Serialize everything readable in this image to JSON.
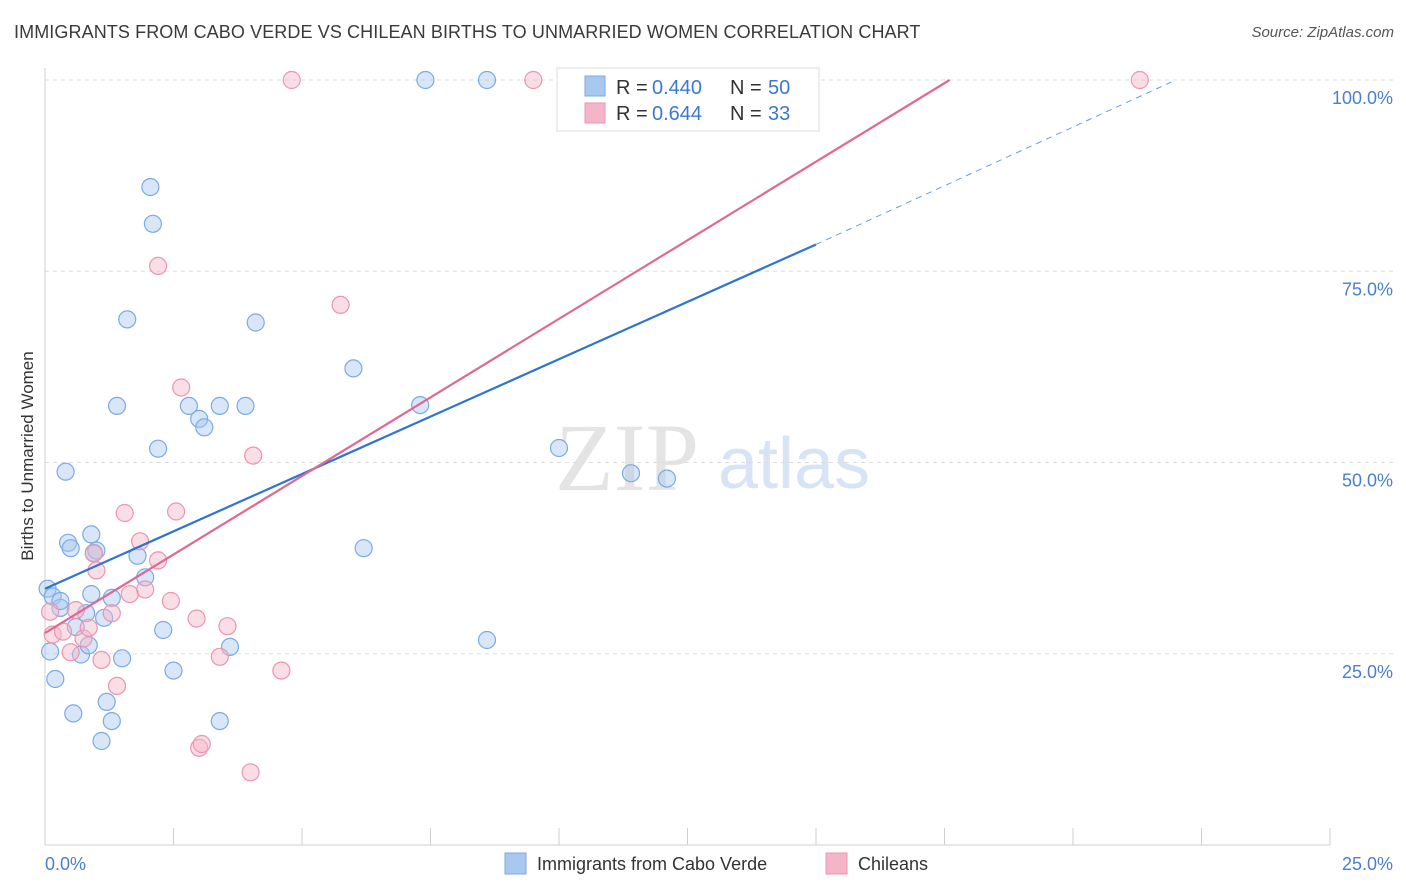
{
  "title": "IMMIGRANTS FROM CABO VERDE VS CHILEAN BIRTHS TO UNMARRIED WOMEN CORRELATION CHART",
  "source": "Source: ZipAtlas.com",
  "watermark": {
    "zip": "ZIP",
    "atlas": "atlas"
  },
  "colors": {
    "blue_fill": "#a8c8f0",
    "blue_stroke": "#7aaae6",
    "blue_line": "#2f74d0",
    "pink_fill": "#f5b5c8",
    "pink_stroke": "#ee93b0",
    "pink_line": "#e06892",
    "axis_label": "#4a7fd0",
    "grid": "#dddddd"
  },
  "legend": {
    "rows": [
      {
        "r_label": "R =",
        "r_value": "0.440",
        "n_label": "N =",
        "n_value": "50"
      },
      {
        "r_label": "R =",
        "r_value": "0.644",
        "n_label": "N =",
        "n_value": "33"
      }
    ]
  },
  "chart_data": {
    "type": "scatter",
    "title": "IMMIGRANTS FROM CABO VERDE VS CHILEAN BIRTHS TO UNMARRIED WOMEN CORRELATION CHART",
    "xlabel": "",
    "ylabel": "Births to Unmarried Women",
    "xlim": [
      0,
      25
    ],
    "ylim": [
      0,
      100
    ],
    "x_tick_labels": [
      "0.0%",
      "25.0%"
    ],
    "y_tick_labels": [
      "100.0%",
      "75.0%",
      "50.0%",
      "25.0%"
    ],
    "y_ticks": [
      100,
      75,
      50,
      25
    ],
    "grid": true,
    "legend_position": "top-center",
    "series": [
      {
        "name": "Immigrants from Cabo Verde",
        "color": "#a8c8f0",
        "r": "0.440",
        "n": "50",
        "trend": {
          "x0": 0.0,
          "y0": 33.5,
          "x1": 15.0,
          "y1": 78.5,
          "dash_to_x": 22.0,
          "dash_to_y": 100.0
        },
        "points": [
          [
            0.05,
            33.5
          ],
          [
            0.1,
            25.3
          ],
          [
            0.15,
            32.5
          ],
          [
            0.2,
            21.7
          ],
          [
            0.3,
            31.0
          ],
          [
            0.4,
            48.8
          ],
          [
            0.45,
            39.5
          ],
          [
            0.5,
            38.8
          ],
          [
            0.55,
            17.2
          ],
          [
            0.6,
            28.5
          ],
          [
            0.7,
            24.9
          ],
          [
            0.8,
            30.3
          ],
          [
            0.85,
            26.1
          ],
          [
            0.9,
            32.8
          ],
          [
            0.9,
            40.6
          ],
          [
            0.95,
            38.2
          ],
          [
            1.0,
            38.5
          ],
          [
            1.1,
            13.6
          ],
          [
            1.15,
            29.7
          ],
          [
            1.2,
            18.7
          ],
          [
            1.3,
            32.3
          ],
          [
            1.3,
            16.2
          ],
          [
            1.4,
            57.4
          ],
          [
            1.5,
            24.4
          ],
          [
            1.6,
            68.7
          ],
          [
            1.8,
            37.8
          ],
          [
            1.95,
            35.0
          ],
          [
            2.05,
            86.0
          ],
          [
            2.1,
            81.2
          ],
          [
            2.2,
            51.8
          ],
          [
            2.3,
            28.1
          ],
          [
            2.5,
            22.8
          ],
          [
            2.8,
            57.4
          ],
          [
            3.0,
            55.7
          ],
          [
            3.1,
            54.6
          ],
          [
            3.4,
            16.2
          ],
          [
            3.4,
            57.4
          ],
          [
            3.6,
            25.9
          ],
          [
            3.9,
            57.4
          ],
          [
            4.1,
            68.3
          ],
          [
            6.0,
            62.3
          ],
          [
            6.2,
            38.8
          ],
          [
            7.3,
            57.5
          ],
          [
            7.4,
            100.0
          ],
          [
            8.6,
            100.0
          ],
          [
            8.6,
            26.8
          ],
          [
            10.0,
            51.9
          ],
          [
            11.4,
            48.6
          ],
          [
            12.1,
            47.9
          ],
          [
            0.3,
            31.9
          ]
        ]
      },
      {
        "name": "Chileans",
        "color": "#f5b5c8",
        "r": "0.644",
        "n": "33",
        "trend": {
          "x0": 0.0,
          "y0": 27.7,
          "x1": 17.6,
          "y1": 100.0
        },
        "points": [
          [
            0.1,
            30.5
          ],
          [
            0.15,
            27.5
          ],
          [
            0.35,
            27.9
          ],
          [
            0.5,
            25.2
          ],
          [
            0.6,
            30.7
          ],
          [
            0.75,
            27.0
          ],
          [
            0.85,
            28.4
          ],
          [
            0.95,
            38.1
          ],
          [
            1.0,
            35.9
          ],
          [
            1.1,
            24.2
          ],
          [
            1.3,
            30.3
          ],
          [
            1.4,
            20.8
          ],
          [
            1.55,
            43.4
          ],
          [
            1.65,
            32.8
          ],
          [
            1.85,
            39.7
          ],
          [
            1.95,
            33.4
          ],
          [
            2.2,
            37.2
          ],
          [
            2.2,
            75.7
          ],
          [
            2.45,
            31.9
          ],
          [
            2.55,
            43.6
          ],
          [
            2.65,
            59.8
          ],
          [
            2.95,
            29.6
          ],
          [
            3.0,
            12.7
          ],
          [
            3.05,
            13.2
          ],
          [
            3.4,
            24.6
          ],
          [
            3.55,
            28.6
          ],
          [
            4.0,
            9.5
          ],
          [
            4.05,
            50.9
          ],
          [
            4.6,
            22.8
          ],
          [
            4.8,
            100.0
          ],
          [
            5.75,
            70.6
          ],
          [
            9.5,
            100.0
          ],
          [
            21.3,
            100.0
          ]
        ]
      }
    ]
  }
}
